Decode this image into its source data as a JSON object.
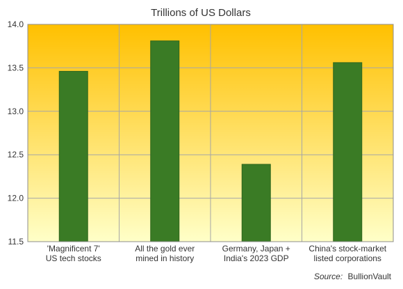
{
  "chart_data": {
    "type": "bar",
    "title": "Trillions of US Dollars",
    "categories": [
      [
        "'Magnificent 7'",
        "US tech stocks"
      ],
      [
        "All the gold ever",
        "mined in history"
      ],
      [
        "Germany, Japan +",
        "India's 2023 GDP"
      ],
      [
        "China's stock-market",
        "listed corporations"
      ]
    ],
    "values": [
      13.46,
      13.81,
      12.39,
      13.56
    ],
    "ylim": [
      11.5,
      14.0
    ],
    "yticks": [
      "11.5",
      "12.0",
      "12.5",
      "13.0",
      "13.5",
      "14.0"
    ],
    "grid": true,
    "legend": "none",
    "source_label": "Source:",
    "source_name": "BullionVault",
    "colors": {
      "bar": "#3a7b25",
      "bar_edge": "#2f661d",
      "bg_top": "#ffc000",
      "bg_bottom": "#ffffc8",
      "grid": "#a6a6a6",
      "axis": "#8c8c8c",
      "text": "#333333"
    }
  }
}
